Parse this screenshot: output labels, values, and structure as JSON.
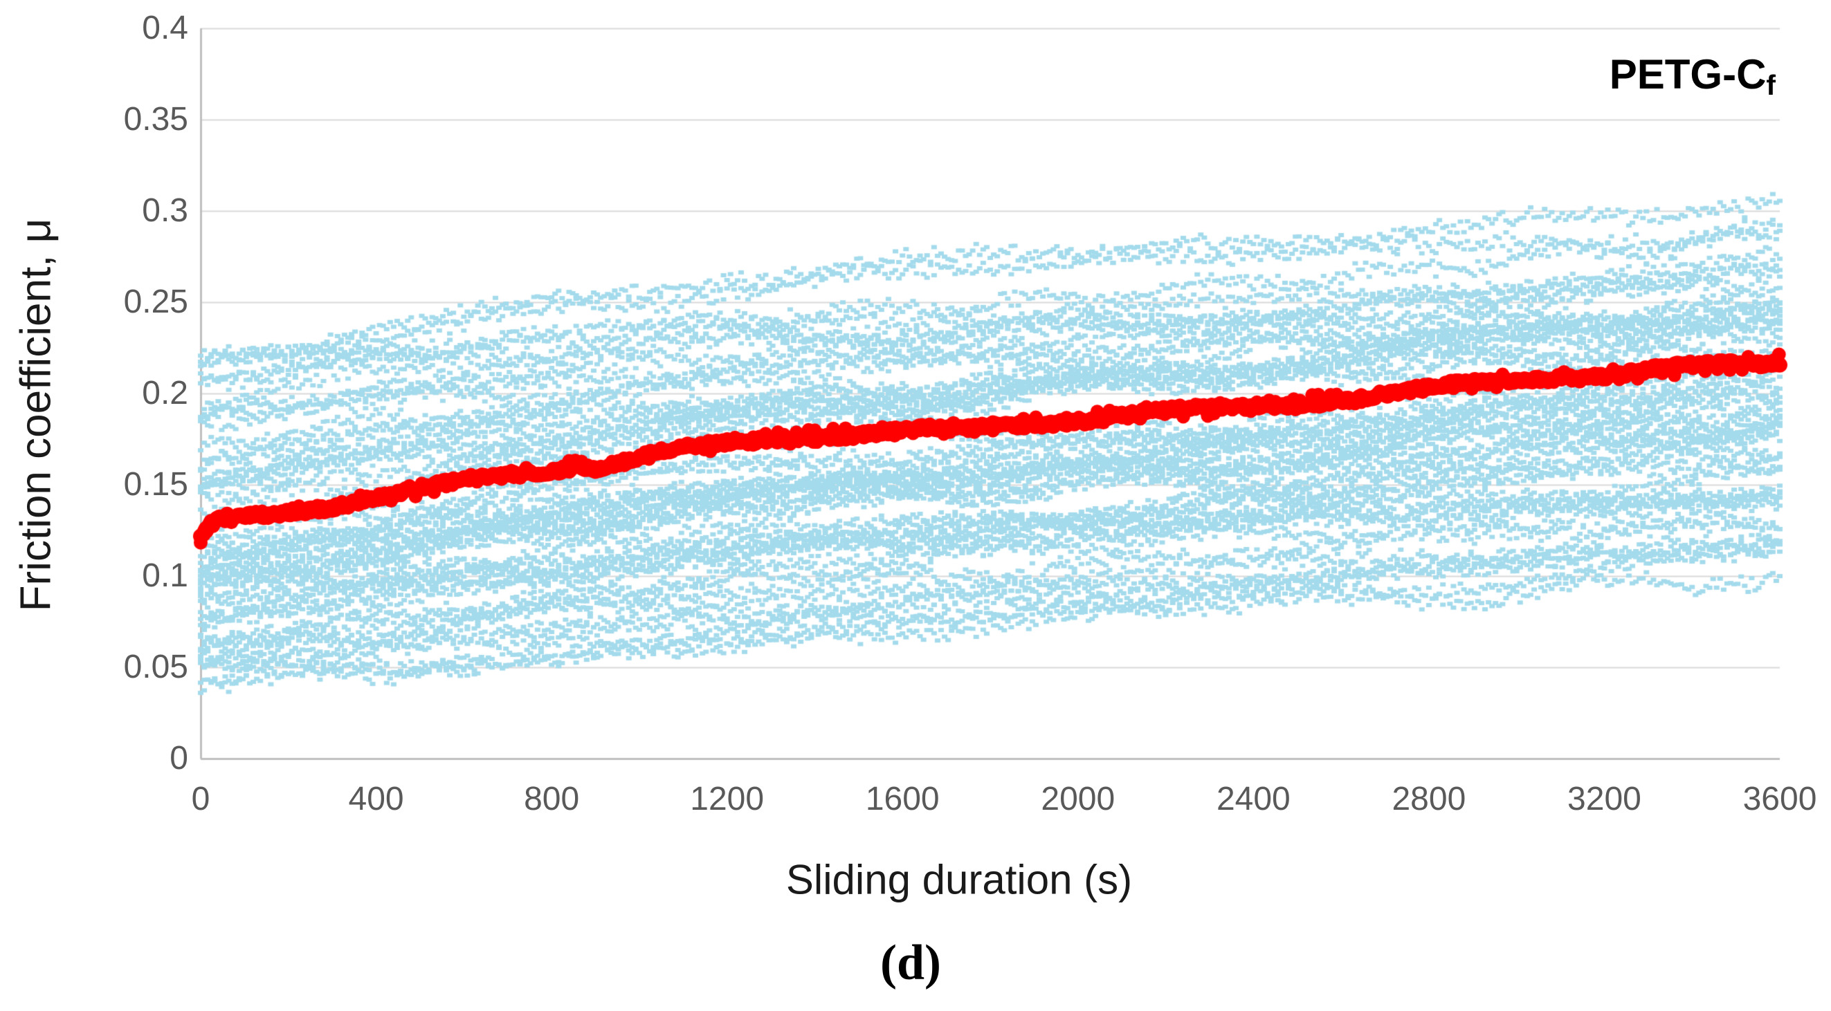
{
  "figure": {
    "corner_label_main": "PETG-C",
    "corner_label_sub": "f",
    "caption": "(d)"
  },
  "chart_data": {
    "type": "scatter",
    "title": "",
    "xlabel": "Sliding duration (s)",
    "ylabel": "Friction coefficient, μ",
    "xlim": [
      0,
      3600
    ],
    "ylim": [
      0,
      0.4
    ],
    "x_tick_values": [
      0,
      400,
      800,
      1200,
      1600,
      2000,
      2400,
      2800,
      3200,
      3600
    ],
    "x_tick_labels": [
      "0",
      "400",
      "800",
      "1200",
      "1600",
      "2000",
      "2400",
      "2800",
      "3200",
      "3600"
    ],
    "y_tick_values": [
      0,
      0.05,
      0.1,
      0.15,
      0.2,
      0.25,
      0.3,
      0.35,
      0.4
    ],
    "y_tick_labels": [
      "0",
      "0.05",
      "0.1",
      "0.15",
      "0.2",
      "0.25",
      "0.3",
      "0.35",
      "0.4"
    ],
    "grid": "horizontal",
    "legend": "none",
    "colors": {
      "scatter_band": "#A4DBEC",
      "mean_line": "#FF0000",
      "gridline": "#D9D9D9",
      "axis_line": "#BFBFBF",
      "tick_text": "#595959",
      "title_text": "#1A1A1A"
    },
    "series": [
      {
        "name": "individual friction traces (scatter band)",
        "type": "scatter-band",
        "color": "#A4DBEC",
        "band_t": [
          0,
          400,
          800,
          1200,
          1600,
          2000,
          2400,
          2800,
          3200,
          3600
        ],
        "dense_low": [
          0.058,
          0.066,
          0.074,
          0.083,
          0.093,
          0.103,
          0.111,
          0.117,
          0.123,
          0.128
        ],
        "dense_high": [
          0.195,
          0.205,
          0.214,
          0.222,
          0.23,
          0.237,
          0.242,
          0.246,
          0.25,
          0.253
        ],
        "outer_low": [
          0.045,
          0.053,
          0.06,
          0.068,
          0.077,
          0.085,
          0.091,
          0.096,
          0.102,
          0.11
        ],
        "outer_high": [
          0.23,
          0.243,
          0.253,
          0.26,
          0.266,
          0.27,
          0.276,
          0.284,
          0.292,
          0.303
        ]
      },
      {
        "name": "mean friction coefficient",
        "type": "line",
        "color": "#FF0000",
        "points": [
          [
            0,
            0.12
          ],
          [
            20,
            0.127
          ],
          [
            50,
            0.131
          ],
          [
            100,
            0.133
          ],
          [
            150,
            0.134
          ],
          [
            200,
            0.136
          ],
          [
            300,
            0.139
          ],
          [
            400,
            0.143
          ],
          [
            500,
            0.147
          ],
          [
            600,
            0.152
          ],
          [
            700,
            0.156
          ],
          [
            800,
            0.159
          ],
          [
            850,
            0.161
          ],
          [
            900,
            0.16
          ],
          [
            1000,
            0.165
          ],
          [
            1100,
            0.169
          ],
          [
            1200,
            0.172
          ],
          [
            1300,
            0.175
          ],
          [
            1400,
            0.177
          ],
          [
            1500,
            0.178
          ],
          [
            1600,
            0.179
          ],
          [
            1700,
            0.18
          ],
          [
            1800,
            0.182
          ],
          [
            1900,
            0.184
          ],
          [
            2000,
            0.186
          ],
          [
            2100,
            0.188
          ],
          [
            2200,
            0.19
          ],
          [
            2300,
            0.191
          ],
          [
            2400,
            0.193
          ],
          [
            2500,
            0.195
          ],
          [
            2600,
            0.197
          ],
          [
            2700,
            0.199
          ],
          [
            2800,
            0.202
          ],
          [
            2900,
            0.205
          ],
          [
            3000,
            0.208
          ],
          [
            3100,
            0.21
          ],
          [
            3200,
            0.21
          ],
          [
            3300,
            0.212
          ],
          [
            3400,
            0.214
          ],
          [
            3500,
            0.216
          ],
          [
            3600,
            0.218
          ]
        ]
      }
    ]
  }
}
